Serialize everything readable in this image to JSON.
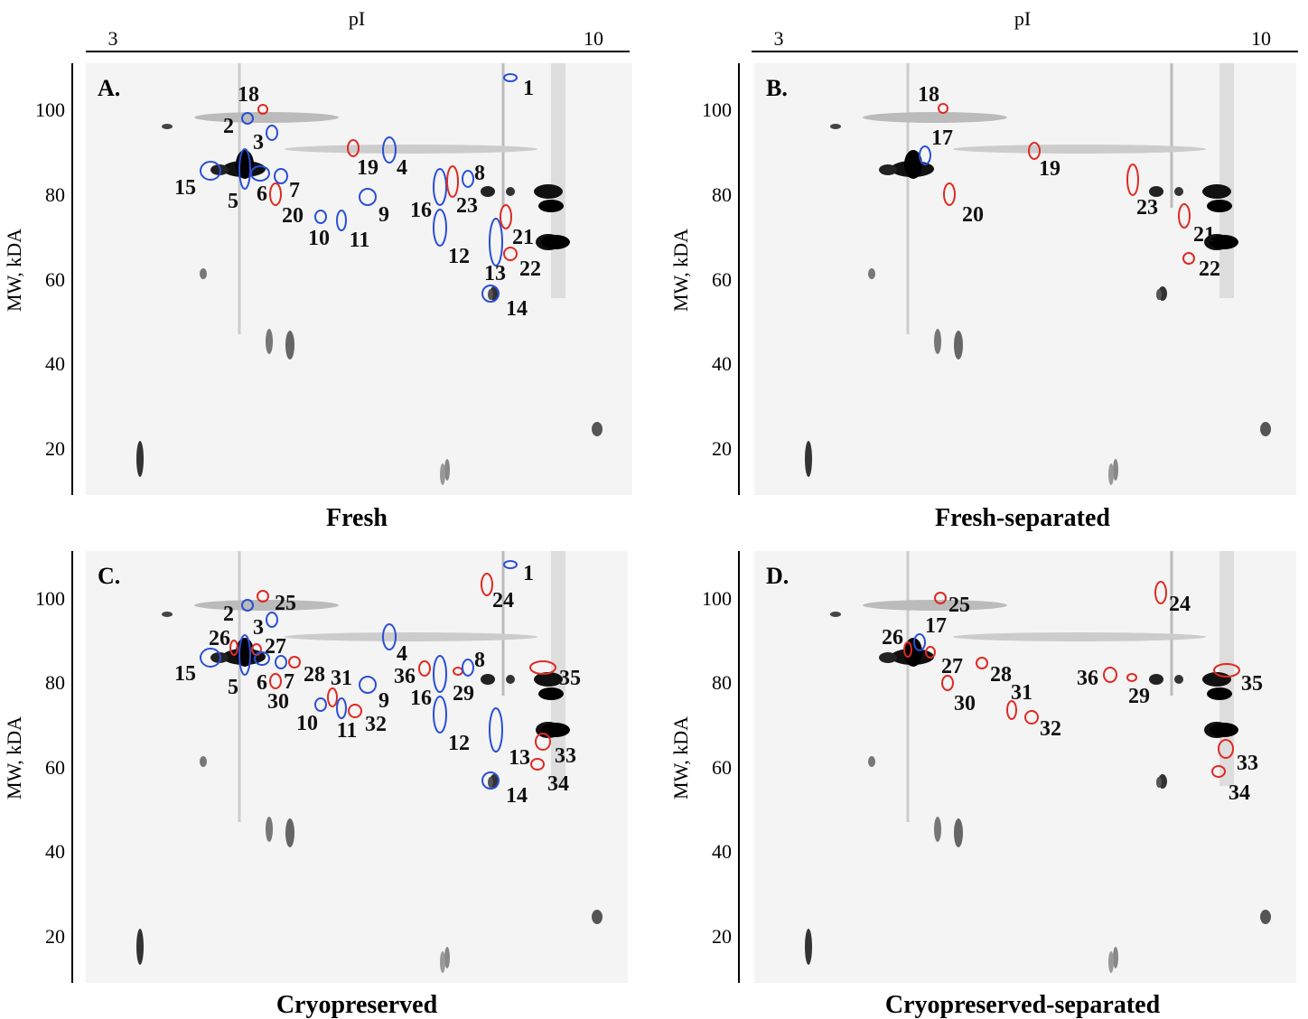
{
  "panels": [
    {
      "letter": "A.",
      "caption": "Fresh",
      "x_label": "pI",
      "x_ticks": [
        "3",
        "10"
      ],
      "y_label": "MW, kDA",
      "y_ticks": [
        "100",
        "80",
        "60",
        "40",
        "20"
      ],
      "spots": [
        {
          "label": "1",
          "color": "#2a4fd6"
        },
        {
          "label": "18",
          "color": "#e02a22"
        },
        {
          "label": "2",
          "color": "#2a4fd6"
        },
        {
          "label": "3",
          "color": "#2a4fd6"
        },
        {
          "label": "19",
          "color": "#e02a22"
        },
        {
          "label": "4",
          "color": "#2a4fd6"
        },
        {
          "label": "15",
          "color": "#2a4fd6"
        },
        {
          "label": "5",
          "color": "#2a4fd6"
        },
        {
          "label": "6",
          "color": "#2a4fd6"
        },
        {
          "label": "7",
          "color": "#2a4fd6"
        },
        {
          "label": "20",
          "color": "#e02a22"
        },
        {
          "label": "9",
          "color": "#2a4fd6"
        },
        {
          "label": "10",
          "color": "#2a4fd6"
        },
        {
          "label": "11",
          "color": "#2a4fd6"
        },
        {
          "label": "16",
          "color": "#2a4fd6"
        },
        {
          "label": "23",
          "color": "#e02a22"
        },
        {
          "label": "8",
          "color": "#2a4fd6"
        },
        {
          "label": "12",
          "color": "#2a4fd6"
        },
        {
          "label": "13",
          "color": "#2a4fd6"
        },
        {
          "label": "21",
          "color": "#e02a22"
        },
        {
          "label": "22",
          "color": "#e02a22"
        },
        {
          "label": "14",
          "color": "#2a4fd6"
        }
      ]
    },
    {
      "letter": "B.",
      "caption": "Fresh-separated",
      "x_label": "pI",
      "x_ticks": [
        "3",
        "10"
      ],
      "y_label": "MW, kDA",
      "y_ticks": [
        "100",
        "80",
        "60",
        "40",
        "20"
      ],
      "spots": [
        {
          "label": "18",
          "color": "#e02a22"
        },
        {
          "label": "17",
          "color": "#2a4fd6"
        },
        {
          "label": "19",
          "color": "#e02a22"
        },
        {
          "label": "20",
          "color": "#e02a22"
        },
        {
          "label": "23",
          "color": "#e02a22"
        },
        {
          "label": "21",
          "color": "#e02a22"
        },
        {
          "label": "22",
          "color": "#e02a22"
        }
      ]
    },
    {
      "letter": "C.",
      "caption": "Cryopreserved",
      "y_label": "MW, kDA",
      "y_ticks": [
        "100",
        "80",
        "60",
        "40",
        "20"
      ],
      "spots": [
        {
          "label": "1",
          "color": "#2a4fd6"
        },
        {
          "label": "24",
          "color": "#e02a22"
        },
        {
          "label": "2",
          "color": "#2a4fd6"
        },
        {
          "label": "25",
          "color": "#e02a22"
        },
        {
          "label": "3",
          "color": "#2a4fd6"
        },
        {
          "label": "26",
          "color": "#e02a22"
        },
        {
          "label": "27",
          "color": "#e02a22"
        },
        {
          "label": "15",
          "color": "#2a4fd6"
        },
        {
          "label": "5",
          "color": "#2a4fd6"
        },
        {
          "label": "6",
          "color": "#2a4fd6"
        },
        {
          "label": "7",
          "color": "#2a4fd6"
        },
        {
          "label": "4",
          "color": "#2a4fd6"
        },
        {
          "label": "28",
          "color": "#e02a22"
        },
        {
          "label": "31",
          "color": "#e02a22"
        },
        {
          "label": "30",
          "color": "#e02a22"
        },
        {
          "label": "10",
          "color": "#2a4fd6"
        },
        {
          "label": "11",
          "color": "#2a4fd6"
        },
        {
          "label": "32",
          "color": "#e02a22"
        },
        {
          "label": "9",
          "color": "#2a4fd6"
        },
        {
          "label": "36",
          "color": "#e02a22"
        },
        {
          "label": "16",
          "color": "#2a4fd6"
        },
        {
          "label": "29",
          "color": "#e02a22"
        },
        {
          "label": "8",
          "color": "#2a4fd6"
        },
        {
          "label": "35",
          "color": "#e02a22"
        },
        {
          "label": "12",
          "color": "#2a4fd6"
        },
        {
          "label": "13",
          "color": "#2a4fd6"
        },
        {
          "label": "33",
          "color": "#e02a22"
        },
        {
          "label": "34",
          "color": "#e02a22"
        },
        {
          "label": "14",
          "color": "#2a4fd6"
        }
      ]
    },
    {
      "letter": "D.",
      "caption": "Cryopreserved-separated",
      "y_label": "MW, kDA",
      "y_ticks": [
        "100",
        "80",
        "60",
        "40",
        "20"
      ],
      "spots": [
        {
          "label": "25",
          "color": "#e02a22"
        },
        {
          "label": "24",
          "color": "#e02a22"
        },
        {
          "label": "26",
          "color": "#e02a22"
        },
        {
          "label": "17",
          "color": "#2a4fd6"
        },
        {
          "label": "27",
          "color": "#e02a22"
        },
        {
          "label": "28",
          "color": "#e02a22"
        },
        {
          "label": "30",
          "color": "#e02a22"
        },
        {
          "label": "31",
          "color": "#e02a22"
        },
        {
          "label": "32",
          "color": "#e02a22"
        },
        {
          "label": "36",
          "color": "#e02a22"
        },
        {
          "label": "29",
          "color": "#e02a22"
        },
        {
          "label": "35",
          "color": "#e02a22"
        },
        {
          "label": "33",
          "color": "#e02a22"
        },
        {
          "label": "34",
          "color": "#e02a22"
        }
      ]
    }
  ]
}
